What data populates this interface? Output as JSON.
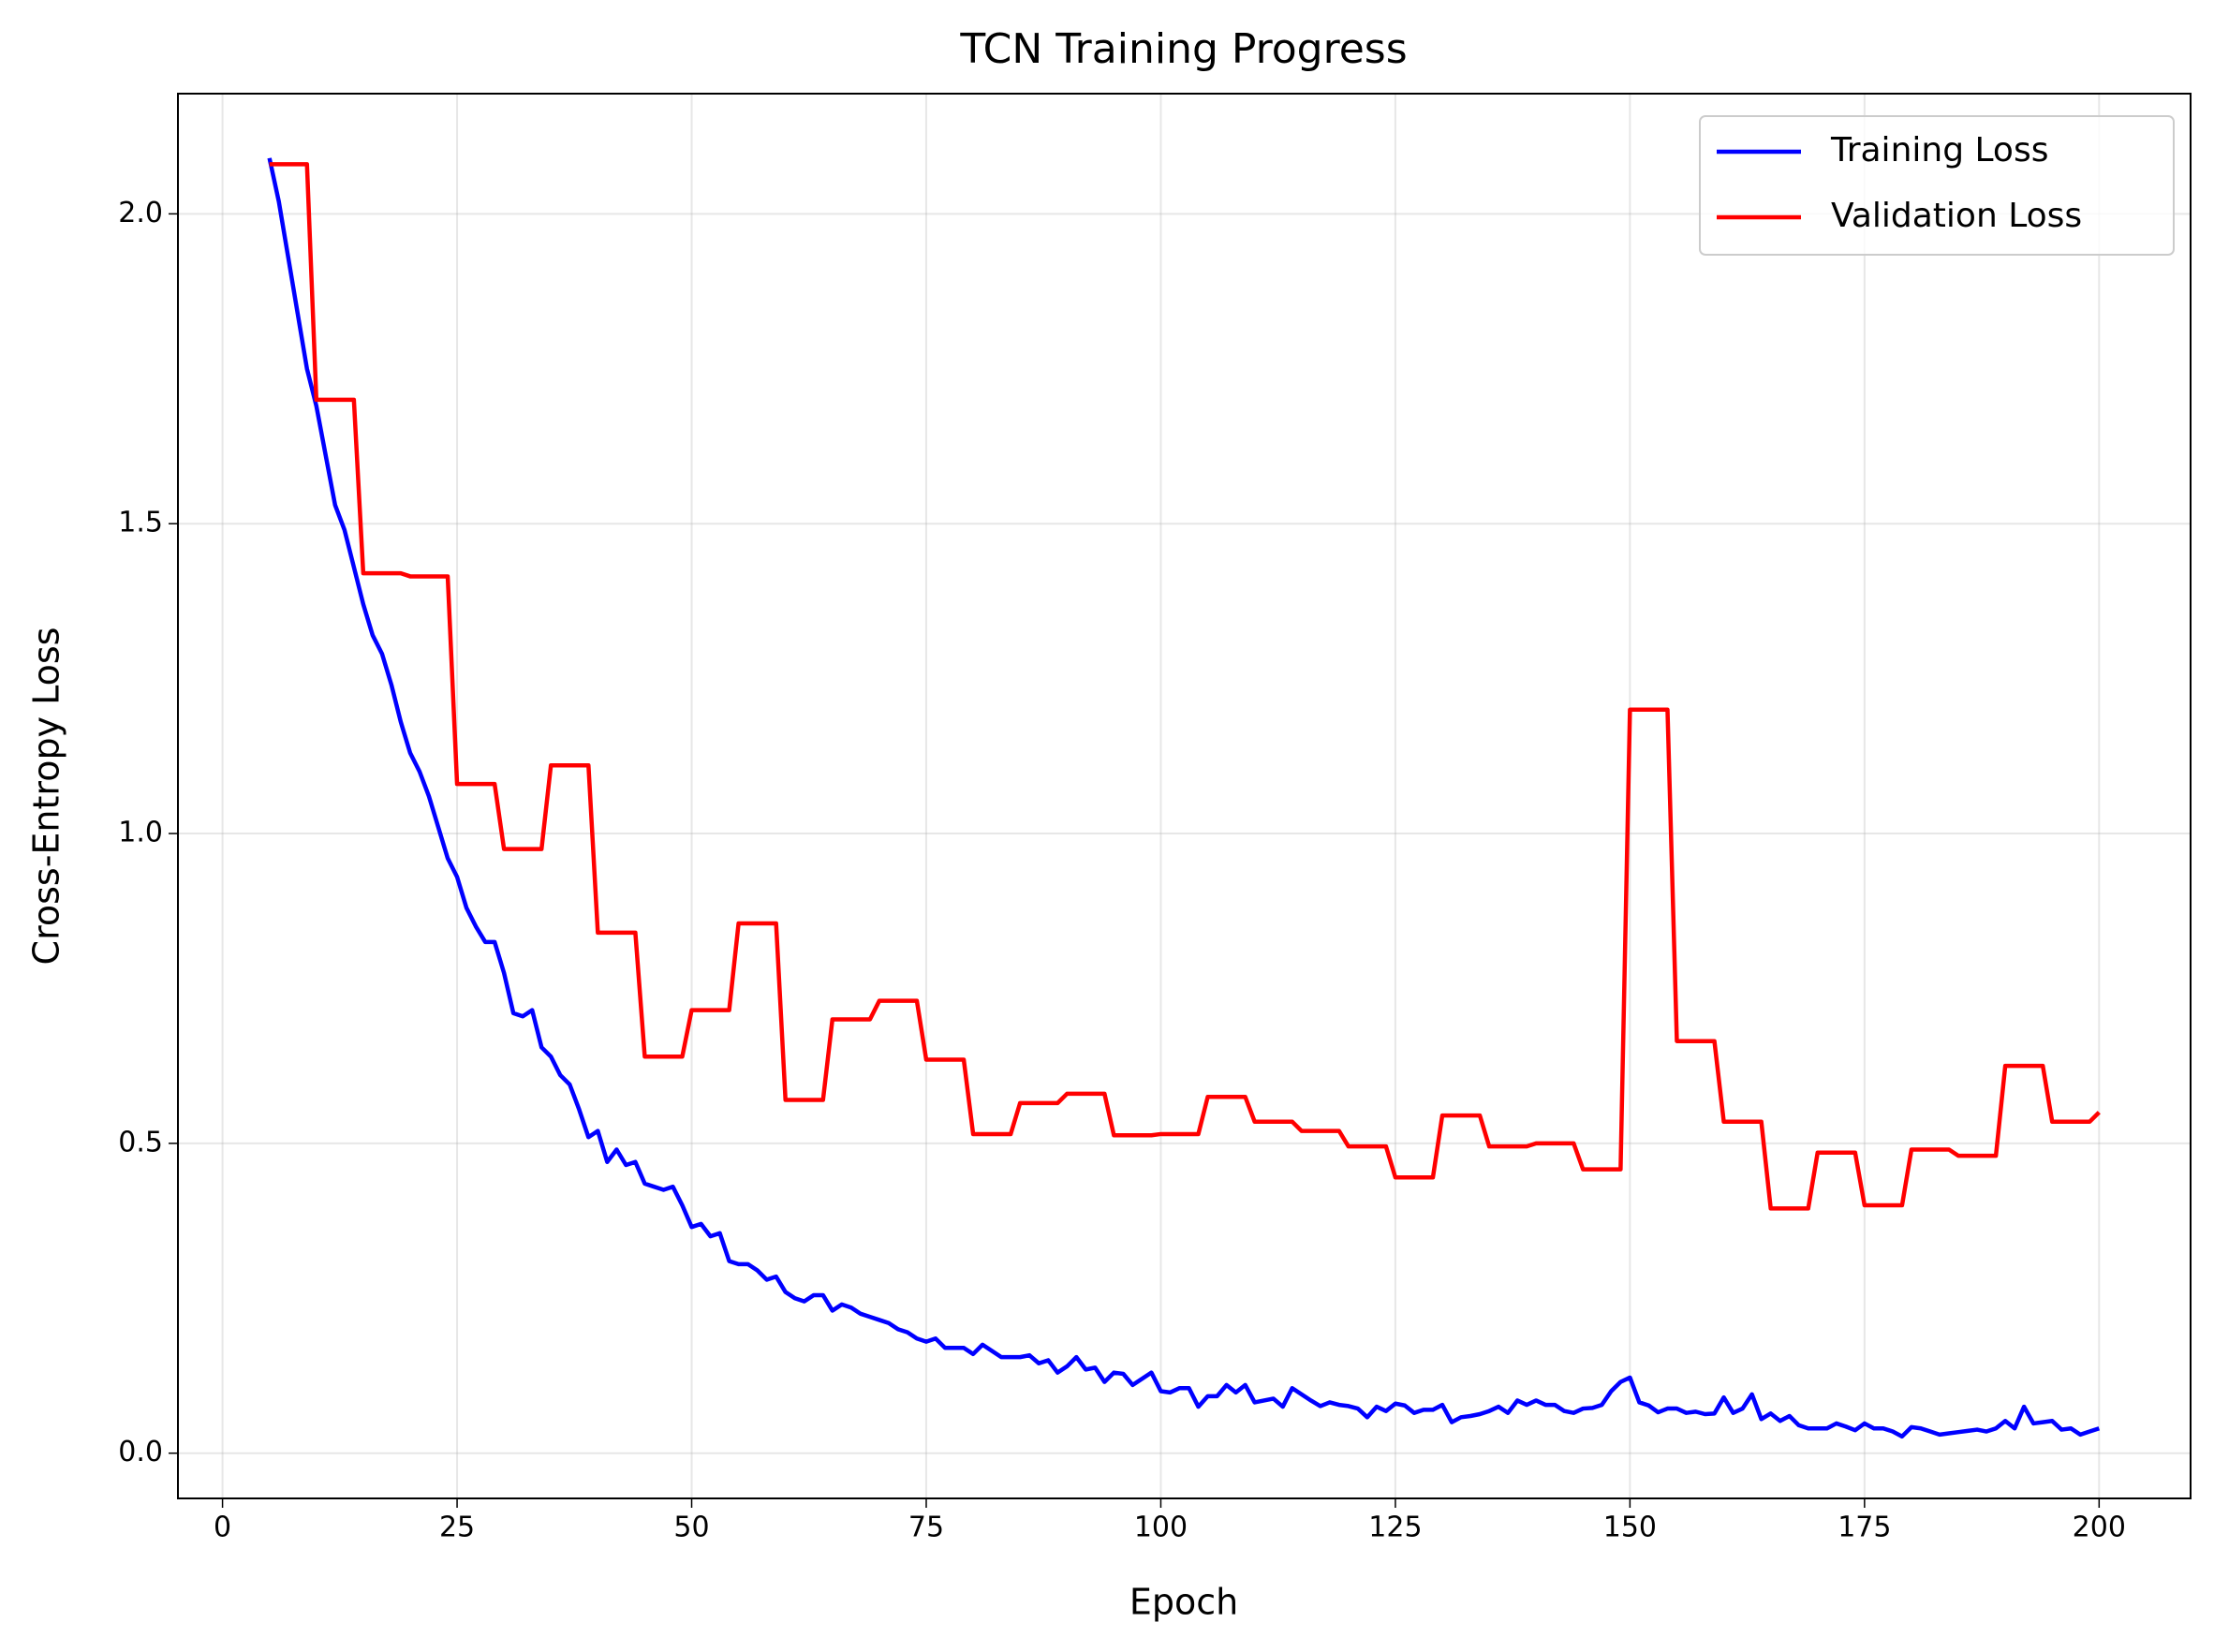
{
  "chart_data": {
    "type": "line",
    "title": "TCN Training Progress",
    "xlabel": "Epoch",
    "ylabel": "Cross-Entropy Loss",
    "x": [
      5,
      6,
      7,
      8,
      9,
      10,
      11,
      12,
      13,
      14,
      15,
      16,
      17,
      18,
      19,
      20,
      21,
      22,
      23,
      24,
      25,
      26,
      27,
      28,
      29,
      30,
      31,
      32,
      33,
      34,
      35,
      36,
      37,
      38,
      39,
      40,
      41,
      42,
      43,
      44,
      45,
      46,
      47,
      48,
      49,
      50,
      51,
      52,
      53,
      54,
      55,
      56,
      57,
      58,
      59,
      60,
      61,
      62,
      63,
      64,
      65,
      66,
      67,
      68,
      69,
      70,
      71,
      72,
      73,
      74,
      75,
      76,
      77,
      78,
      79,
      80,
      81,
      82,
      83,
      84,
      85,
      86,
      87,
      88,
      89,
      90,
      91,
      92,
      93,
      94,
      95,
      96,
      97,
      98,
      99,
      100,
      101,
      102,
      103,
      104,
      105,
      106,
      107,
      108,
      109,
      110,
      111,
      112,
      113,
      114,
      115,
      116,
      117,
      118,
      119,
      120,
      121,
      122,
      123,
      124,
      125,
      126,
      127,
      128,
      129,
      130,
      131,
      132,
      133,
      134,
      135,
      136,
      137,
      138,
      139,
      140,
      141,
      142,
      143,
      144,
      145,
      146,
      147,
      148,
      149,
      150,
      151,
      152,
      153,
      154,
      155,
      156,
      157,
      158,
      159,
      160,
      161,
      162,
      163,
      164,
      165,
      166,
      167,
      168,
      169,
      170,
      171,
      172,
      173,
      174,
      175,
      176,
      177,
      178,
      179,
      180,
      181,
      182,
      183,
      184,
      185,
      186,
      187,
      188,
      189,
      190,
      191,
      192,
      193,
      194,
      195,
      196,
      197,
      198,
      199,
      200
    ],
    "series": [
      {
        "name": "Training Loss",
        "color": "#0000ff",
        "values": [
          2.09,
          2.02,
          1.93,
          1.84,
          1.75,
          1.69,
          1.61,
          1.53,
          1.49,
          1.43,
          1.37,
          1.32,
          1.29,
          1.24,
          1.18,
          1.13,
          1.1,
          1.06,
          1.01,
          0.96,
          0.93,
          0.88,
          0.85,
          0.825,
          0.825,
          0.775,
          0.71,
          0.705,
          0.715,
          0.655,
          0.64,
          0.61,
          0.595,
          0.555,
          0.51,
          0.52,
          0.47,
          0.49,
          0.465,
          0.47,
          0.435,
          0.43,
          0.425,
          0.43,
          0.4,
          0.365,
          0.37,
          0.35,
          0.355,
          0.31,
          0.305,
          0.305,
          0.295,
          0.28,
          0.285,
          0.26,
          0.25,
          0.245,
          0.255,
          0.255,
          0.23,
          0.24,
          0.235,
          0.225,
          0.22,
          0.215,
          0.21,
          0.2,
          0.195,
          0.185,
          0.18,
          0.185,
          0.17,
          0.17,
          0.17,
          0.16,
          0.175,
          0.165,
          0.155,
          0.155,
          0.155,
          0.158,
          0.145,
          0.15,
          0.13,
          0.14,
          0.155,
          0.135,
          0.138,
          0.115,
          0.13,
          0.128,
          0.11,
          0.12,
          0.13,
          0.1,
          0.098,
          0.105,
          0.105,
          0.075,
          0.092,
          0.092,
          0.11,
          0.098,
          0.11,
          0.082,
          0.085,
          0.088,
          0.075,
          0.105,
          0.095,
          0.085,
          0.076,
          0.082,
          0.078,
          0.076,
          0.072,
          0.058,
          0.075,
          0.068,
          0.08,
          0.077,
          0.065,
          0.07,
          0.07,
          0.078,
          0.05,
          0.058,
          0.06,
          0.063,
          0.068,
          0.075,
          0.065,
          0.085,
          0.078,
          0.085,
          0.078,
          0.078,
          0.068,
          0.065,
          0.072,
          0.073,
          0.078,
          0.1,
          0.115,
          0.122,
          0.082,
          0.077,
          0.066,
          0.072,
          0.072,
          0.065,
          0.067,
          0.063,
          0.064,
          0.09,
          0.065,
          0.072,
          0.095,
          0.055,
          0.064,
          0.052,
          0.06,
          0.045,
          0.04,
          0.04,
          0.04,
          0.048,
          0.043,
          0.037,
          0.048,
          0.04,
          0.04,
          0.035,
          0.027,
          0.042,
          0.04,
          0.035,
          0.03,
          0.032,
          0.034,
          0.036,
          0.038,
          0.035,
          0.04,
          0.052,
          0.04,
          0.075,
          0.048,
          0.05,
          0.052,
          0.038,
          0.04,
          0.03,
          0.035,
          0.04
        ]
      },
      {
        "name": "Validation Loss",
        "color": "#ff0000",
        "values": [
          2.08,
          2.08,
          2.08,
          2.08,
          2.08,
          1.7,
          1.7,
          1.7,
          1.7,
          1.7,
          1.42,
          1.42,
          1.42,
          1.42,
          1.42,
          1.415,
          1.415,
          1.415,
          1.415,
          1.415,
          1.08,
          1.08,
          1.08,
          1.08,
          1.08,
          0.975,
          0.975,
          0.975,
          0.975,
          0.975,
          1.11,
          1.11,
          1.11,
          1.11,
          1.11,
          0.84,
          0.84,
          0.84,
          0.84,
          0.84,
          0.64,
          0.64,
          0.64,
          0.64,
          0.64,
          0.715,
          0.715,
          0.715,
          0.715,
          0.715,
          0.855,
          0.855,
          0.855,
          0.855,
          0.855,
          0.57,
          0.57,
          0.57,
          0.57,
          0.57,
          0.7,
          0.7,
          0.7,
          0.7,
          0.7,
          0.73,
          0.73,
          0.73,
          0.73,
          0.73,
          0.635,
          0.635,
          0.635,
          0.635,
          0.635,
          0.515,
          0.515,
          0.515,
          0.515,
          0.515,
          0.565,
          0.565,
          0.565,
          0.565,
          0.565,
          0.58,
          0.58,
          0.58,
          0.58,
          0.58,
          0.513,
          0.513,
          0.513,
          0.513,
          0.513,
          0.515,
          0.515,
          0.515,
          0.515,
          0.515,
          0.575,
          0.575,
          0.575,
          0.575,
          0.575,
          0.535,
          0.535,
          0.535,
          0.535,
          0.535,
          0.52,
          0.52,
          0.52,
          0.52,
          0.52,
          0.495,
          0.495,
          0.495,
          0.495,
          0.495,
          0.445,
          0.445,
          0.445,
          0.445,
          0.445,
          0.545,
          0.545,
          0.545,
          0.545,
          0.545,
          0.495,
          0.495,
          0.495,
          0.495,
          0.495,
          0.5,
          0.5,
          0.5,
          0.5,
          0.5,
          0.458,
          0.458,
          0.458,
          0.458,
          0.458,
          1.2,
          1.2,
          1.2,
          1.2,
          1.2,
          0.665,
          0.665,
          0.665,
          0.665,
          0.665,
          0.535,
          0.535,
          0.535,
          0.535,
          0.535,
          0.395,
          0.395,
          0.395,
          0.395,
          0.395,
          0.485,
          0.485,
          0.485,
          0.485,
          0.485,
          0.4,
          0.4,
          0.4,
          0.4,
          0.4,
          0.49,
          0.49,
          0.49,
          0.49,
          0.49,
          0.48,
          0.48,
          0.48,
          0.48,
          0.48,
          0.625,
          0.625,
          0.625,
          0.625,
          0.625,
          0.535,
          0.535,
          0.535,
          0.535,
          0.535,
          0.55
        ]
      }
    ],
    "xlim": [
      -4.75,
      209.75
    ],
    "ylim": [
      -0.073,
      2.194
    ],
    "xticks": [
      0,
      25,
      50,
      75,
      100,
      125,
      150,
      175,
      200
    ],
    "yticks": [
      {
        "value": 0,
        "label": "0.0"
      },
      0.5,
      {
        "value": 1,
        "label": "1.0"
      },
      1.5,
      {
        "value": 2,
        "label": "2.0"
      }
    ],
    "grid": true,
    "legend": "upper right"
  }
}
